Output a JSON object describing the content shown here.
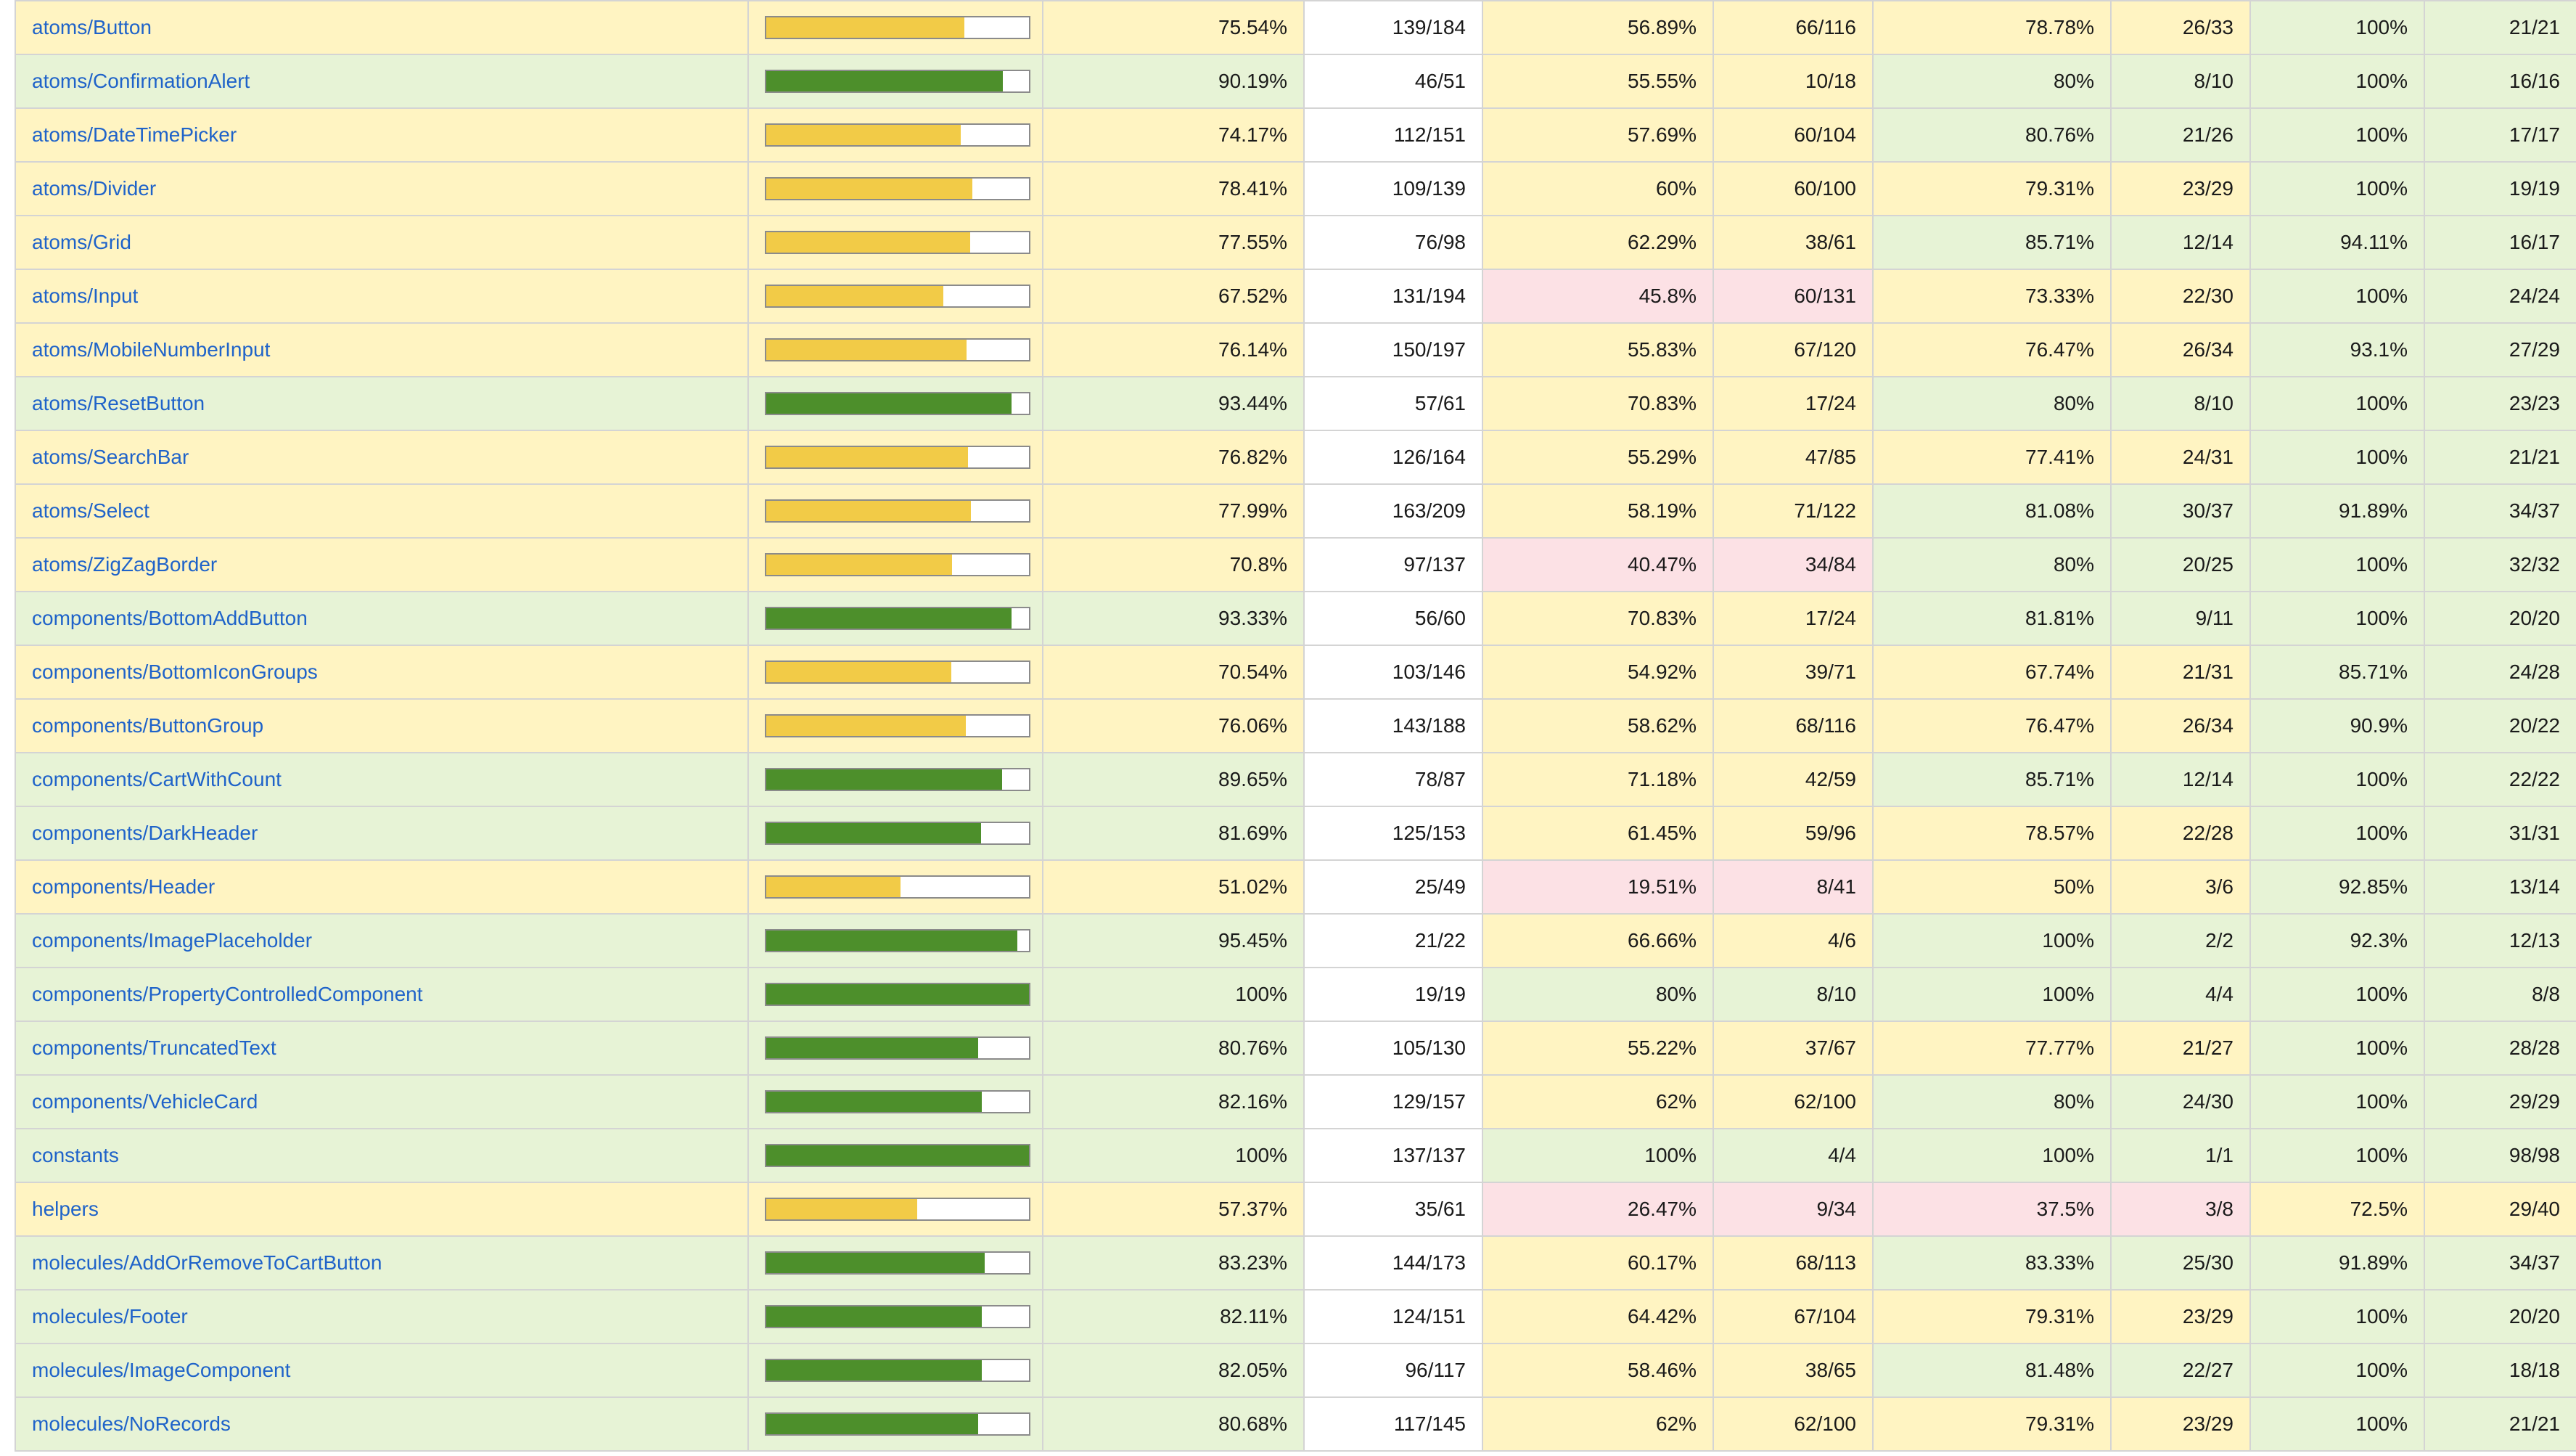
{
  "rows": [
    {
      "file": "atoms/Button",
      "pct": "75.54%",
      "stmts": "139/184",
      "branches_pct": "56.89%",
      "branches": "66/116",
      "functions_pct": "78.78%",
      "functions": "26/33",
      "lines_pct": "100%",
      "lines": "21/21",
      "progress": 75.54,
      "cls": {
        "file": "medium",
        "pct": "medium",
        "branches_pct": "medium",
        "branches": "medium",
        "functions_pct": "medium",
        "functions": "medium",
        "lines_pct": "high",
        "lines": "high"
      }
    },
    {
      "file": "atoms/ConfirmationAlert",
      "pct": "90.19%",
      "stmts": "46/51",
      "branches_pct": "55.55%",
      "branches": "10/18",
      "functions_pct": "80%",
      "functions": "8/10",
      "lines_pct": "100%",
      "lines": "16/16",
      "progress": 90.19,
      "cls": {
        "file": "high",
        "pct": "high",
        "branches_pct": "medium",
        "branches": "medium",
        "functions_pct": "high",
        "functions": "high",
        "lines_pct": "high",
        "lines": "high"
      }
    },
    {
      "file": "atoms/DateTimePicker",
      "pct": "74.17%",
      "stmts": "112/151",
      "branches_pct": "57.69%",
      "branches": "60/104",
      "functions_pct": "80.76%",
      "functions": "21/26",
      "lines_pct": "100%",
      "lines": "17/17",
      "progress": 74.17,
      "cls": {
        "file": "medium",
        "pct": "medium",
        "branches_pct": "medium",
        "branches": "medium",
        "functions_pct": "high",
        "functions": "high",
        "lines_pct": "high",
        "lines": "high"
      }
    },
    {
      "file": "atoms/Divider",
      "pct": "78.41%",
      "stmts": "109/139",
      "branches_pct": "60%",
      "branches": "60/100",
      "functions_pct": "79.31%",
      "functions": "23/29",
      "lines_pct": "100%",
      "lines": "19/19",
      "progress": 78.41,
      "cls": {
        "file": "medium",
        "pct": "medium",
        "branches_pct": "medium",
        "branches": "medium",
        "functions_pct": "medium",
        "functions": "medium",
        "lines_pct": "high",
        "lines": "high"
      }
    },
    {
      "file": "atoms/Grid",
      "pct": "77.55%",
      "stmts": "76/98",
      "branches_pct": "62.29%",
      "branches": "38/61",
      "functions_pct": "85.71%",
      "functions": "12/14",
      "lines_pct": "94.11%",
      "lines": "16/17",
      "progress": 77.55,
      "cls": {
        "file": "medium",
        "pct": "medium",
        "branches_pct": "medium",
        "branches": "medium",
        "functions_pct": "high",
        "functions": "high",
        "lines_pct": "high",
        "lines": "high"
      }
    },
    {
      "file": "atoms/Input",
      "pct": "67.52%",
      "stmts": "131/194",
      "branches_pct": "45.8%",
      "branches": "60/131",
      "functions_pct": "73.33%",
      "functions": "22/30",
      "lines_pct": "100%",
      "lines": "24/24",
      "progress": 67.52,
      "cls": {
        "file": "medium",
        "pct": "medium",
        "branches_pct": "low",
        "branches": "low",
        "functions_pct": "medium",
        "functions": "medium",
        "lines_pct": "high",
        "lines": "high"
      }
    },
    {
      "file": "atoms/MobileNumberInput",
      "pct": "76.14%",
      "stmts": "150/197",
      "branches_pct": "55.83%",
      "branches": "67/120",
      "functions_pct": "76.47%",
      "functions": "26/34",
      "lines_pct": "93.1%",
      "lines": "27/29",
      "progress": 76.14,
      "cls": {
        "file": "medium",
        "pct": "medium",
        "branches_pct": "medium",
        "branches": "medium",
        "functions_pct": "medium",
        "functions": "medium",
        "lines_pct": "high",
        "lines": "high"
      }
    },
    {
      "file": "atoms/ResetButton",
      "pct": "93.44%",
      "stmts": "57/61",
      "branches_pct": "70.83%",
      "branches": "17/24",
      "functions_pct": "80%",
      "functions": "8/10",
      "lines_pct": "100%",
      "lines": "23/23",
      "progress": 93.44,
      "cls": {
        "file": "high",
        "pct": "high",
        "branches_pct": "medium",
        "branches": "medium",
        "functions_pct": "high",
        "functions": "high",
        "lines_pct": "high",
        "lines": "high"
      }
    },
    {
      "file": "atoms/SearchBar",
      "pct": "76.82%",
      "stmts": "126/164",
      "branches_pct": "55.29%",
      "branches": "47/85",
      "functions_pct": "77.41%",
      "functions": "24/31",
      "lines_pct": "100%",
      "lines": "21/21",
      "progress": 76.82,
      "cls": {
        "file": "medium",
        "pct": "medium",
        "branches_pct": "medium",
        "branches": "medium",
        "functions_pct": "medium",
        "functions": "medium",
        "lines_pct": "high",
        "lines": "high"
      }
    },
    {
      "file": "atoms/Select",
      "pct": "77.99%",
      "stmts": "163/209",
      "branches_pct": "58.19%",
      "branches": "71/122",
      "functions_pct": "81.08%",
      "functions": "30/37",
      "lines_pct": "91.89%",
      "lines": "34/37",
      "progress": 77.99,
      "cls": {
        "file": "medium",
        "pct": "medium",
        "branches_pct": "medium",
        "branches": "medium",
        "functions_pct": "high",
        "functions": "high",
        "lines_pct": "high",
        "lines": "high"
      }
    },
    {
      "file": "atoms/ZigZagBorder",
      "pct": "70.8%",
      "stmts": "97/137",
      "branches_pct": "40.47%",
      "branches": "34/84",
      "functions_pct": "80%",
      "functions": "20/25",
      "lines_pct": "100%",
      "lines": "32/32",
      "progress": 70.8,
      "cls": {
        "file": "medium",
        "pct": "medium",
        "branches_pct": "low",
        "branches": "low",
        "functions_pct": "high",
        "functions": "high",
        "lines_pct": "high",
        "lines": "high"
      }
    },
    {
      "file": "components/BottomAddButton",
      "pct": "93.33%",
      "stmts": "56/60",
      "branches_pct": "70.83%",
      "branches": "17/24",
      "functions_pct": "81.81%",
      "functions": "9/11",
      "lines_pct": "100%",
      "lines": "20/20",
      "progress": 93.33,
      "cls": {
        "file": "high",
        "pct": "high",
        "branches_pct": "medium",
        "branches": "medium",
        "functions_pct": "high",
        "functions": "high",
        "lines_pct": "high",
        "lines": "high"
      }
    },
    {
      "file": "components/BottomIconGroups",
      "pct": "70.54%",
      "stmts": "103/146",
      "branches_pct": "54.92%",
      "branches": "39/71",
      "functions_pct": "67.74%",
      "functions": "21/31",
      "lines_pct": "85.71%",
      "lines": "24/28",
      "progress": 70.54,
      "cls": {
        "file": "medium",
        "pct": "medium",
        "branches_pct": "medium",
        "branches": "medium",
        "functions_pct": "medium",
        "functions": "medium",
        "lines_pct": "high",
        "lines": "high"
      }
    },
    {
      "file": "components/ButtonGroup",
      "pct": "76.06%",
      "stmts": "143/188",
      "branches_pct": "58.62%",
      "branches": "68/116",
      "functions_pct": "76.47%",
      "functions": "26/34",
      "lines_pct": "90.9%",
      "lines": "20/22",
      "progress": 76.06,
      "cls": {
        "file": "medium",
        "pct": "medium",
        "branches_pct": "medium",
        "branches": "medium",
        "functions_pct": "medium",
        "functions": "medium",
        "lines_pct": "high",
        "lines": "high"
      }
    },
    {
      "file": "components/CartWithCount",
      "pct": "89.65%",
      "stmts": "78/87",
      "branches_pct": "71.18%",
      "branches": "42/59",
      "functions_pct": "85.71%",
      "functions": "12/14",
      "lines_pct": "100%",
      "lines": "22/22",
      "progress": 89.65,
      "cls": {
        "file": "high",
        "pct": "high",
        "branches_pct": "medium",
        "branches": "medium",
        "functions_pct": "high",
        "functions": "high",
        "lines_pct": "high",
        "lines": "high"
      }
    },
    {
      "file": "components/DarkHeader",
      "pct": "81.69%",
      "stmts": "125/153",
      "branches_pct": "61.45%",
      "branches": "59/96",
      "functions_pct": "78.57%",
      "functions": "22/28",
      "lines_pct": "100%",
      "lines": "31/31",
      "progress": 81.69,
      "cls": {
        "file": "high",
        "pct": "high",
        "branches_pct": "medium",
        "branches": "medium",
        "functions_pct": "medium",
        "functions": "medium",
        "lines_pct": "high",
        "lines": "high"
      }
    },
    {
      "file": "components/Header",
      "pct": "51.02%",
      "stmts": "25/49",
      "branches_pct": "19.51%",
      "branches": "8/41",
      "functions_pct": "50%",
      "functions": "3/6",
      "lines_pct": "92.85%",
      "lines": "13/14",
      "progress": 51.02,
      "cls": {
        "file": "medium",
        "pct": "medium",
        "branches_pct": "low",
        "branches": "low",
        "functions_pct": "medium",
        "functions": "medium",
        "lines_pct": "high",
        "lines": "high"
      }
    },
    {
      "file": "components/ImagePlaceholder",
      "pct": "95.45%",
      "stmts": "21/22",
      "branches_pct": "66.66%",
      "branches": "4/6",
      "functions_pct": "100%",
      "functions": "2/2",
      "lines_pct": "92.3%",
      "lines": "12/13",
      "progress": 95.45,
      "cls": {
        "file": "high",
        "pct": "high",
        "branches_pct": "medium",
        "branches": "medium",
        "functions_pct": "high",
        "functions": "high",
        "lines_pct": "high",
        "lines": "high"
      }
    },
    {
      "file": "components/PropertyControlledComponent",
      "pct": "100%",
      "stmts": "19/19",
      "branches_pct": "80%",
      "branches": "8/10",
      "functions_pct": "100%",
      "functions": "4/4",
      "lines_pct": "100%",
      "lines": "8/8",
      "progress": 100,
      "cls": {
        "file": "high",
        "pct": "high",
        "branches_pct": "high",
        "branches": "high",
        "functions_pct": "high",
        "functions": "high",
        "lines_pct": "high",
        "lines": "high"
      }
    },
    {
      "file": "components/TruncatedText",
      "pct": "80.76%",
      "stmts": "105/130",
      "branches_pct": "55.22%",
      "branches": "37/67",
      "functions_pct": "77.77%",
      "functions": "21/27",
      "lines_pct": "100%",
      "lines": "28/28",
      "progress": 80.76,
      "cls": {
        "file": "high",
        "pct": "high",
        "branches_pct": "medium",
        "branches": "medium",
        "functions_pct": "medium",
        "functions": "medium",
        "lines_pct": "high",
        "lines": "high"
      }
    },
    {
      "file": "components/VehicleCard",
      "pct": "82.16%",
      "stmts": "129/157",
      "branches_pct": "62%",
      "branches": "62/100",
      "functions_pct": "80%",
      "functions": "24/30",
      "lines_pct": "100%",
      "lines": "29/29",
      "progress": 82.16,
      "cls": {
        "file": "high",
        "pct": "high",
        "branches_pct": "medium",
        "branches": "medium",
        "functions_pct": "high",
        "functions": "high",
        "lines_pct": "high",
        "lines": "high"
      }
    },
    {
      "file": "constants",
      "pct": "100%",
      "stmts": "137/137",
      "branches_pct": "100%",
      "branches": "4/4",
      "functions_pct": "100%",
      "functions": "1/1",
      "lines_pct": "100%",
      "lines": "98/98",
      "progress": 100,
      "cls": {
        "file": "high",
        "pct": "high",
        "branches_pct": "high",
        "branches": "high",
        "functions_pct": "high",
        "functions": "high",
        "lines_pct": "high",
        "lines": "high"
      }
    },
    {
      "file": "helpers",
      "pct": "57.37%",
      "stmts": "35/61",
      "branches_pct": "26.47%",
      "branches": "9/34",
      "functions_pct": "37.5%",
      "functions": "3/8",
      "lines_pct": "72.5%",
      "lines": "29/40",
      "progress": 57.37,
      "cls": {
        "file": "medium",
        "pct": "medium",
        "branches_pct": "low",
        "branches": "low",
        "functions_pct": "low",
        "functions": "low",
        "lines_pct": "medium",
        "lines": "medium"
      }
    },
    {
      "file": "molecules/AddOrRemoveToCartButton",
      "pct": "83.23%",
      "stmts": "144/173",
      "branches_pct": "60.17%",
      "branches": "68/113",
      "functions_pct": "83.33%",
      "functions": "25/30",
      "lines_pct": "91.89%",
      "lines": "34/37",
      "progress": 83.23,
      "cls": {
        "file": "high",
        "pct": "high",
        "branches_pct": "medium",
        "branches": "medium",
        "functions_pct": "high",
        "functions": "high",
        "lines_pct": "high",
        "lines": "high"
      }
    },
    {
      "file": "molecules/Footer",
      "pct": "82.11%",
      "stmts": "124/151",
      "branches_pct": "64.42%",
      "branches": "67/104",
      "functions_pct": "79.31%",
      "functions": "23/29",
      "lines_pct": "100%",
      "lines": "20/20",
      "progress": 82.11,
      "cls": {
        "file": "high",
        "pct": "high",
        "branches_pct": "medium",
        "branches": "medium",
        "functions_pct": "medium",
        "functions": "medium",
        "lines_pct": "high",
        "lines": "high"
      }
    },
    {
      "file": "molecules/ImageComponent",
      "pct": "82.05%",
      "stmts": "96/117",
      "branches_pct": "58.46%",
      "branches": "38/65",
      "functions_pct": "81.48%",
      "functions": "22/27",
      "lines_pct": "100%",
      "lines": "18/18",
      "progress": 82.05,
      "cls": {
        "file": "high",
        "pct": "high",
        "branches_pct": "medium",
        "branches": "medium",
        "functions_pct": "high",
        "functions": "high",
        "lines_pct": "high",
        "lines": "high"
      }
    },
    {
      "file": "molecules/NoRecords",
      "pct": "80.68%",
      "stmts": "117/145",
      "branches_pct": "62%",
      "branches": "62/100",
      "functions_pct": "79.31%",
      "functions": "23/29",
      "lines_pct": "100%",
      "lines": "21/21",
      "progress": 80.68,
      "cls": {
        "file": "high",
        "pct": "high",
        "branches_pct": "medium",
        "branches": "medium",
        "functions_pct": "medium",
        "functions": "medium",
        "lines_pct": "high",
        "lines": "high"
      }
    }
  ],
  "colors": {
    "link": "#1f63c9",
    "high_bg": "#e7f3d6",
    "medium_bg": "#fff4c2",
    "low_bg": "#fce1e5",
    "high_bar": "#4d8f2b",
    "medium_bar": "#f2cb47",
    "border": "#d4d4d4"
  }
}
